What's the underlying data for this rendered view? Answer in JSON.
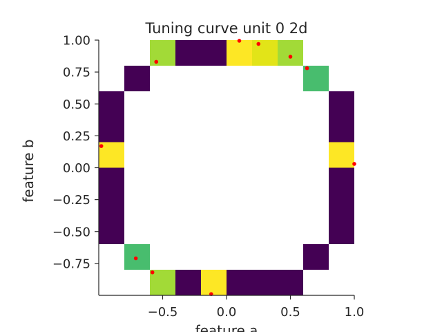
{
  "chart_data": {
    "type": "heatmap",
    "title": "Tuning curve unit 0 2d",
    "xlabel": "feature a",
    "ylabel": "feature b",
    "xlim": [
      -1.0,
      1.0
    ],
    "ylim": [
      -1.0,
      1.0
    ],
    "xticks": [
      -0.5,
      0.0,
      0.5,
      1.0
    ],
    "xtick_labels": [
      "−0.5",
      "0.0",
      "0.5",
      "1.0"
    ],
    "yticks": [
      1.0,
      0.75,
      0.5,
      0.25,
      0.0,
      -0.25,
      -0.5,
      -0.75
    ],
    "ytick_labels": [
      "1.00",
      "0.75",
      "0.50",
      "0.25",
      "0.00",
      "−0.25",
      "−0.50",
      "−0.75"
    ],
    "grid": false,
    "bin_width": 0.2,
    "bin_height": 0.2,
    "colormap": "viridis",
    "colors": {
      "dark_purple": "#440154",
      "green": "#48bd6e",
      "yellow_green": "#a2da37",
      "yellow": "#fde725",
      "yellow2": "#e2e418",
      "point": "#ff0000"
    },
    "cells": [
      {
        "x0": -0.6,
        "y0": 0.8,
        "color": "#a2da37"
      },
      {
        "x0": -0.4,
        "y0": 0.8,
        "color": "#440154"
      },
      {
        "x0": -0.2,
        "y0": 0.8,
        "color": "#440154"
      },
      {
        "x0": 0.0,
        "y0": 0.8,
        "color": "#fde725"
      },
      {
        "x0": 0.2,
        "y0": 0.8,
        "color": "#e2e418"
      },
      {
        "x0": 0.4,
        "y0": 0.8,
        "color": "#a2da37"
      },
      {
        "x0": -0.8,
        "y0": 0.6,
        "color": "#440154"
      },
      {
        "x0": 0.6,
        "y0": 0.6,
        "color": "#48bd6e"
      },
      {
        "x0": -1.0,
        "y0": 0.4,
        "color": "#440154"
      },
      {
        "x0": 0.8,
        "y0": 0.4,
        "color": "#440154"
      },
      {
        "x0": -1.0,
        "y0": 0.2,
        "color": "#440154"
      },
      {
        "x0": 0.8,
        "y0": 0.2,
        "color": "#440154"
      },
      {
        "x0": -1.0,
        "y0": 0.0,
        "color": "#fde725"
      },
      {
        "x0": 0.8,
        "y0": 0.0,
        "color": "#fde725"
      },
      {
        "x0": -1.0,
        "y0": -0.2,
        "color": "#440154"
      },
      {
        "x0": 0.8,
        "y0": -0.2,
        "color": "#440154"
      },
      {
        "x0": -1.0,
        "y0": -0.4,
        "color": "#440154"
      },
      {
        "x0": 0.8,
        "y0": -0.4,
        "color": "#440154"
      },
      {
        "x0": -1.0,
        "y0": -0.6,
        "color": "#440154"
      },
      {
        "x0": 0.8,
        "y0": -0.6,
        "color": "#440154"
      },
      {
        "x0": -0.8,
        "y0": -0.8,
        "color": "#48bd6e"
      },
      {
        "x0": 0.6,
        "y0": -0.8,
        "color": "#440154"
      },
      {
        "x0": -0.6,
        "y0": -1.0,
        "color": "#a2da37"
      },
      {
        "x0": -0.4,
        "y0": -1.0,
        "color": "#440154"
      },
      {
        "x0": -0.2,
        "y0": -1.0,
        "color": "#fde725"
      },
      {
        "x0": 0.0,
        "y0": -1.0,
        "color": "#440154"
      },
      {
        "x0": 0.2,
        "y0": -1.0,
        "color": "#440154"
      },
      {
        "x0": 0.4,
        "y0": -1.0,
        "color": "#440154"
      }
    ],
    "points": [
      {
        "x": 0.1,
        "y": 0.995
      },
      {
        "x": 0.25,
        "y": 0.97
      },
      {
        "x": -0.55,
        "y": 0.83
      },
      {
        "x": 0.5,
        "y": 0.87
      },
      {
        "x": 0.63,
        "y": 0.78
      },
      {
        "x": -0.98,
        "y": 0.17
      },
      {
        "x": 1.0,
        "y": 0.03
      },
      {
        "x": -0.71,
        "y": -0.71
      },
      {
        "x": -0.58,
        "y": -0.82
      },
      {
        "x": -0.12,
        "y": -0.99
      }
    ]
  }
}
